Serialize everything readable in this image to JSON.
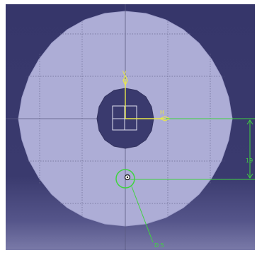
{
  "viewport": {
    "background_top": "#36366a",
    "background_bottom": "#7a7aa8"
  },
  "part": {
    "fill_color": "#adadd6",
    "hole_color": "#3a3a6e",
    "grid_color": "#55557a"
  },
  "sketch_axes": {
    "h_label": "H",
    "v_label": "V",
    "axis_color": "#e8e84a"
  },
  "dimensions": {
    "distance_value": "19",
    "diameter_label": "D 5",
    "dimension_color": "#3fd43f"
  }
}
